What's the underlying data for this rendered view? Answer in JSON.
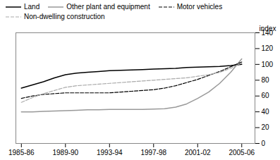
{
  "chart_data": {
    "type": "line",
    "ylabel": "index",
    "x": [
      1985,
      1986,
      1987,
      1988,
      1989,
      1990,
      1991,
      1992,
      1993,
      1994,
      1995,
      1996,
      1997,
      1998,
      1999,
      2000,
      2001,
      2002,
      2003,
      2004,
      2005
    ],
    "series": [
      {
        "name": "Land",
        "color": "#000000",
        "line_style": "solid",
        "values": [
          70,
          74,
          78,
          83,
          87,
          89,
          90,
          91,
          92,
          92.5,
          93,
          93.5,
          94,
          94.5,
          95,
          96,
          96.5,
          97,
          97.5,
          98.5,
          100
        ]
      },
      {
        "name": "Other plant and equipment",
        "color": "#999999",
        "line_style": "solid",
        "values": [
          40,
          40,
          40.5,
          41,
          41.5,
          42,
          42.5,
          42.5,
          43,
          43,
          43,
          43,
          43.5,
          44,
          46,
          50,
          57,
          65,
          76,
          90,
          107
        ]
      },
      {
        "name": "Motor vehicles",
        "color": "#000000",
        "line_style": "dashed",
        "values": [
          57,
          60,
          62,
          63,
          64,
          64,
          64,
          64,
          64,
          65,
          66,
          67,
          68,
          70,
          73,
          77,
          81,
          86,
          91,
          97,
          103
        ]
      },
      {
        "name": "Non-dwelling construction",
        "color": "#aaaaaa",
        "line_style": "dashed",
        "values": [
          52,
          58,
          63,
          67,
          71,
          73,
          74,
          75,
          76,
          77,
          78,
          79,
          80,
          81,
          82,
          83,
          85,
          87,
          90,
          95,
          102
        ]
      }
    ],
    "xlim": [
      1984.5,
      2006.2
    ],
    "xticks": [
      {
        "value": 1985,
        "label": "1985-86"
      },
      {
        "value": 1989,
        "label": "1989-90"
      },
      {
        "value": 1993,
        "label": "1993-94"
      },
      {
        "value": 1997,
        "label": "1997-98"
      },
      {
        "value": 2001,
        "label": "2001-02"
      },
      {
        "value": 2005,
        "label": "2005-06"
      }
    ],
    "ylim": [
      0,
      140
    ],
    "yticks": [
      0,
      20,
      40,
      60,
      80,
      100,
      120,
      140
    ],
    "grid": false,
    "legend": "upper left"
  }
}
